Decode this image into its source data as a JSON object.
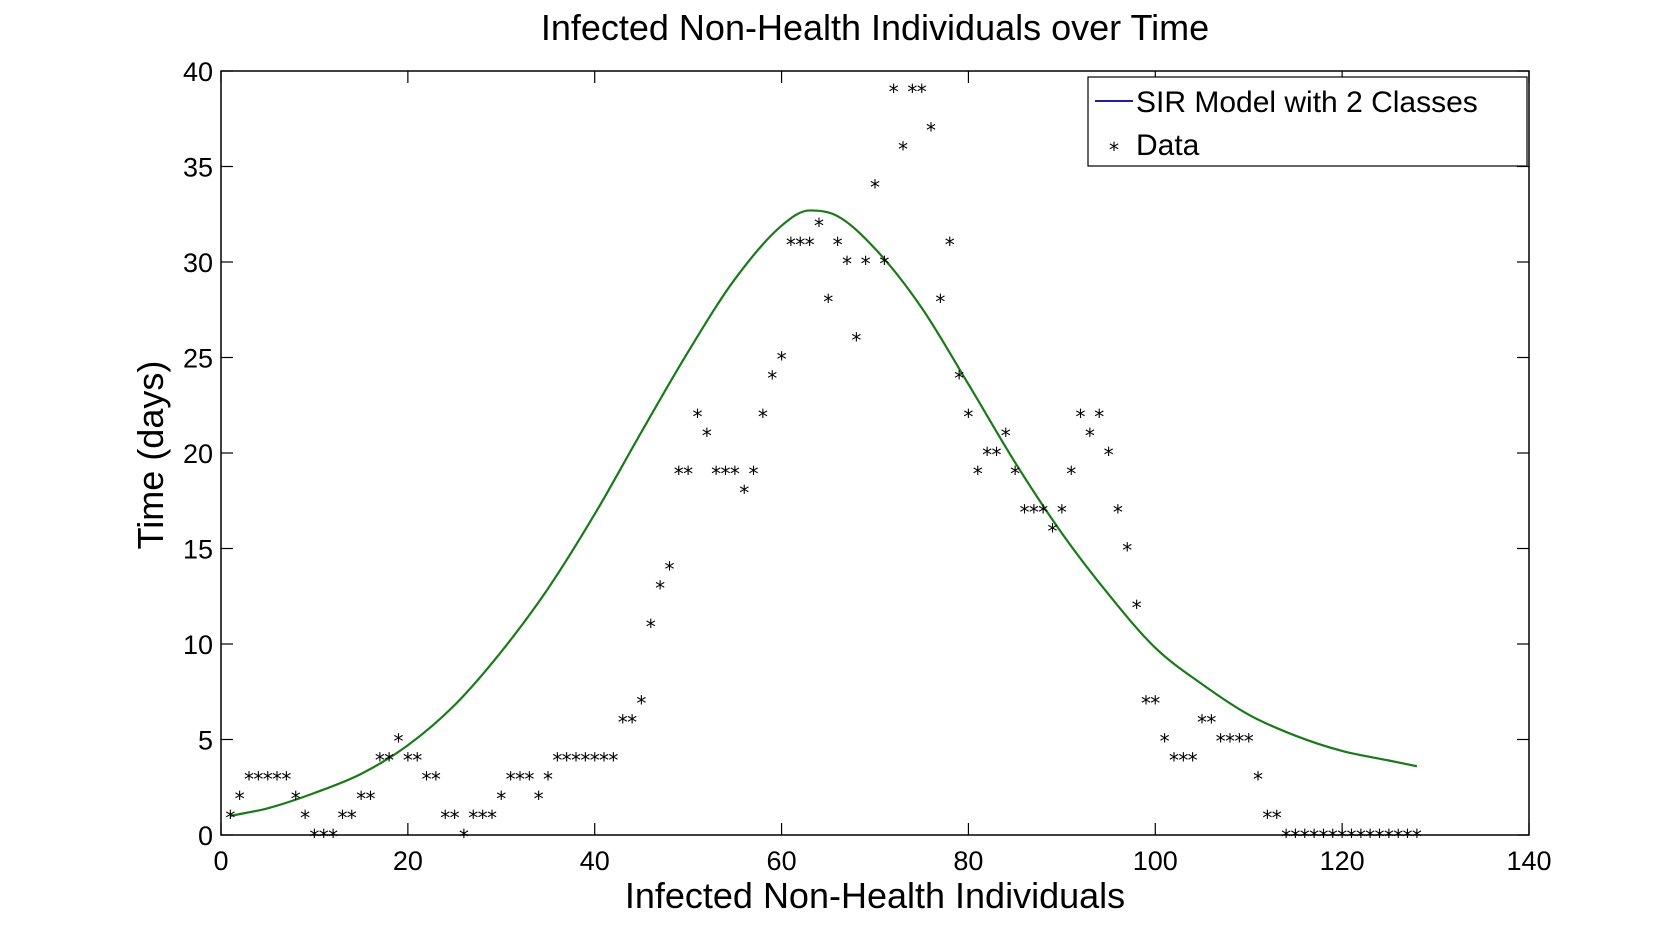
{
  "chart_data": {
    "type": "line",
    "title": "Infected Non-Health Individuals over Time",
    "xlabel": "Infected Non-Health Individuals",
    "ylabel": "Time (days)",
    "xlim": [
      0,
      140
    ],
    "ylim": [
      0,
      40
    ],
    "xticks": [
      0,
      20,
      40,
      60,
      80,
      100,
      120,
      140
    ],
    "yticks": [
      0,
      5,
      10,
      15,
      20,
      25,
      30,
      35,
      40
    ],
    "grid": false,
    "legend_position": "top-right",
    "series": [
      {
        "name": "SIR Model with 2 Classes",
        "style": "line",
        "color": "#1a7a1a",
        "legend_color": "#1f1fa0",
        "peak_x": 63.5,
        "peak_y": 32.7,
        "x": [
          1,
          5,
          10,
          15,
          20,
          25,
          30,
          35,
          40,
          45,
          50,
          55,
          60,
          63,
          66,
          70,
          75,
          80,
          85,
          90,
          95,
          100,
          105,
          110,
          115,
          120,
          125,
          128
        ],
        "y": [
          1.0,
          1.4,
          2.2,
          3.2,
          4.7,
          6.8,
          9.6,
          12.9,
          16.8,
          21.1,
          25.3,
          29.1,
          31.9,
          32.7,
          32.4,
          30.7,
          27.6,
          23.6,
          19.5,
          15.8,
          12.6,
          9.8,
          7.9,
          6.3,
          5.2,
          4.4,
          3.9,
          3.6
        ]
      },
      {
        "name": "Data",
        "style": "marker",
        "marker": "*",
        "color": "#000000",
        "y": [
          1,
          2,
          3,
          3,
          3,
          3,
          3,
          2,
          1,
          0,
          0,
          0,
          1,
          1,
          2,
          2,
          4,
          4,
          5,
          4,
          4,
          3,
          3,
          1,
          1,
          0,
          1,
          1,
          1,
          2,
          3,
          3,
          3,
          2,
          3,
          4,
          4,
          4,
          4,
          4,
          4,
          4,
          6,
          6,
          7,
          11,
          13,
          14,
          19,
          19,
          22,
          21,
          19,
          19,
          19,
          18,
          19,
          22,
          24,
          25,
          31,
          31,
          31,
          32,
          28,
          31,
          30,
          26,
          30,
          34,
          30,
          39,
          36,
          39,
          39,
          37,
          28,
          31,
          24,
          22,
          19,
          20,
          20,
          21,
          19,
          17,
          17,
          17,
          16,
          17,
          19,
          22,
          21,
          22,
          20,
          17,
          15,
          12,
          7,
          7,
          5,
          4,
          4,
          4,
          6,
          6,
          5,
          5,
          5,
          5,
          3,
          1,
          1,
          0,
          0,
          0,
          0,
          0,
          0,
          0,
          0,
          0,
          0,
          0,
          0,
          0,
          0,
          0
        ]
      }
    ]
  }
}
